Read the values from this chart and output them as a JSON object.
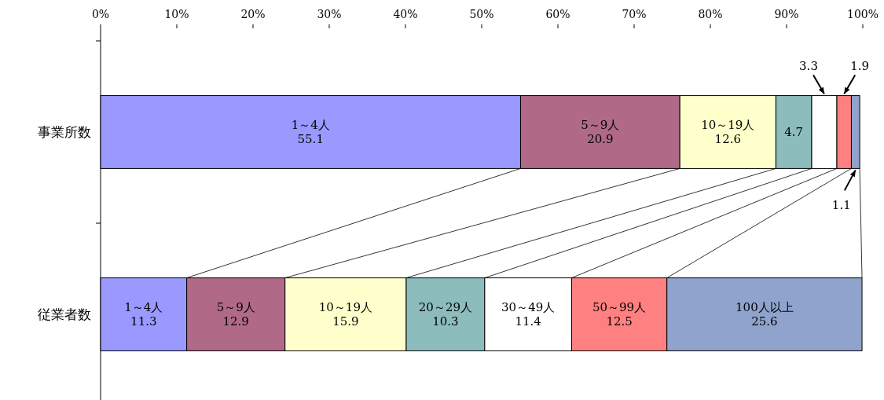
{
  "chart_data": {
    "type": "bar",
    "orientation": "horizontal",
    "stacked": true,
    "categories": [
      "事業所数",
      "従業者数"
    ],
    "xlim": [
      0,
      100
    ],
    "xticks": [
      {
        "value": 0,
        "label": "0%"
      },
      {
        "value": 10,
        "label": "10%"
      },
      {
        "value": 20,
        "label": "20%"
      },
      {
        "value": 30,
        "label": "30%"
      },
      {
        "value": 40,
        "label": "40%"
      },
      {
        "value": 50,
        "label": "50%"
      },
      {
        "value": 60,
        "label": "60%"
      },
      {
        "value": 70,
        "label": "70%"
      },
      {
        "value": 80,
        "label": "80%"
      },
      {
        "value": 90,
        "label": "90%"
      },
      {
        "value": 100,
        "label": "100%"
      }
    ],
    "series": [
      {
        "color": "#9999ff",
        "values": [
          55.1,
          11.3
        ],
        "value_labels": [
          "1～4人\n55.1",
          "1～4人\n11.3"
        ]
      },
      {
        "color": "#b06a88",
        "values": [
          20.9,
          12.9
        ],
        "value_labels": [
          "5～9人\n20.9",
          "5～9人\n12.9"
        ]
      },
      {
        "color": "#ffffcc",
        "values": [
          12.6,
          15.9
        ],
        "value_labels": [
          "10～19人\n12.6",
          "10～19人\n15.9"
        ]
      },
      {
        "color": "#8cbcbc",
        "values": [
          4.7,
          10.3
        ],
        "value_labels": [
          "4.7",
          "20～29人\n10.3"
        ]
      },
      {
        "color": "#ffffff",
        "values": [
          3.3,
          11.4
        ],
        "value_labels": [
          null,
          "30～49人\n11.4"
        ]
      },
      {
        "color": "#ff8080",
        "values": [
          1.9,
          12.5
        ],
        "value_labels": [
          null,
          "50～99人\n12.5"
        ]
      },
      {
        "color": "#8fa3cc",
        "values": [
          1.1,
          25.6
        ],
        "value_labels": [
          null,
          "100人以上\n25.6"
        ]
      }
    ],
    "annotations": [
      "3.3",
      "1.9",
      "1.1"
    ],
    "grid": false
  }
}
